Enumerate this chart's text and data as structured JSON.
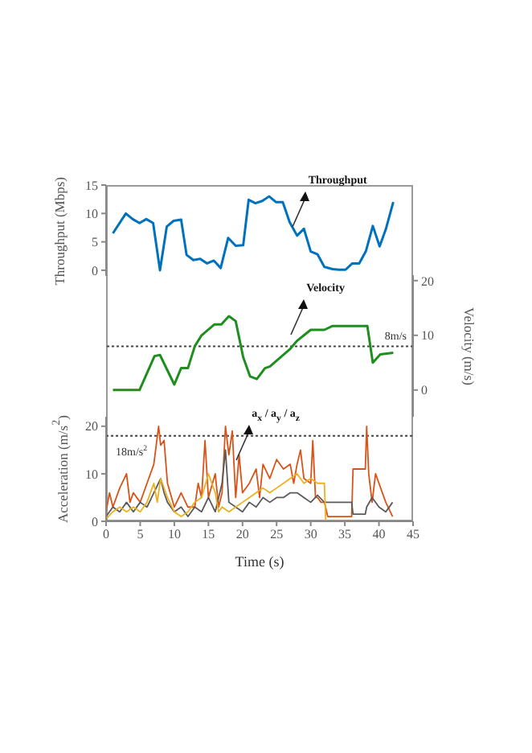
{
  "chart_data": [
    {
      "type": "line",
      "ylabel": "Throughput (Mbps)",
      "xlim": [
        0,
        45
      ],
      "ylim": [
        -1,
        15
      ],
      "yticks": [
        0,
        5,
        10,
        15
      ],
      "tick_labels": "y",
      "series": [
        {
          "color": "#0072bd",
          "x": [
            1,
            2.9,
            3.9,
            4.9,
            5.9,
            6.9,
            7.9,
            8.9,
            9.9,
            11,
            11.8,
            12.8,
            13.8,
            14.8,
            15.8,
            16.8,
            17.9,
            19,
            20.1,
            20.9,
            21.9,
            22.9,
            23.9,
            24.9,
            25.9,
            26.9,
            28,
            29,
            30,
            31,
            32,
            33.2,
            34.1,
            35.1,
            36.1,
            37.1,
            38.1,
            39.1,
            40.1,
            41,
            42.1
          ],
          "values": [
            6.5,
            10,
            9,
            8.3,
            9,
            8.3,
            0,
            7.7,
            8.7,
            8.9,
            2.7,
            1.8,
            2,
            1.2,
            1.7,
            0.4,
            5.7,
            4.3,
            4.4,
            12.4,
            11.8,
            12.2,
            13,
            12,
            12,
            8.5,
            6.1,
            7.3,
            3.3,
            2.8,
            0.6,
            0.2,
            0.1,
            0.1,
            1.2,
            1.2,
            3.4,
            7.8,
            4.2,
            7.2,
            12
          ]
        }
      ],
      "annotations": [
        {
          "text": "Throughput",
          "x": 27.3,
          "y": 7.5
        }
      ]
    },
    {
      "type": "line",
      "y2label": "Velocity (m/s)",
      "xlim": [
        0,
        45
      ],
      "y2lim": [
        -5,
        21
      ],
      "y2ticks": [
        0,
        10,
        20
      ],
      "tick_labels": "y2",
      "series": [
        {
          "color": "#1e8f1e",
          "axis": "y2",
          "x": [
            1,
            4.9,
            7.1,
            7.9,
            10,
            11,
            12,
            13,
            14,
            15.9,
            16.9,
            18,
            19,
            20.1,
            21.1,
            22.1,
            23.3,
            24,
            26.9,
            28,
            29,
            30,
            32,
            33.2,
            38.3,
            39.1,
            40.2,
            42.1
          ],
          "values": [
            0,
            0,
            6.2,
            6.4,
            1,
            4,
            4,
            8,
            10,
            12,
            12,
            13.5,
            12.6,
            6,
            2.5,
            2,
            4,
            4.3,
            7.4,
            9,
            10,
            11,
            11,
            11.7,
            11.7,
            5,
            6.5,
            6.8
          ]
        }
      ],
      "ref_lines": [
        {
          "axis": "y2",
          "value": 8,
          "label": "8m/s",
          "line_style": "dotted",
          "color": "#444444"
        }
      ],
      "annotations": [
        "Velocity"
      ]
    },
    {
      "type": "line",
      "xlabel": "Time (s)",
      "ylabel": "Acceleration (m/s$^{2}$)",
      "xlim": [
        0,
        45
      ],
      "xticks": [
        0,
        5,
        10,
        15,
        20,
        25,
        30,
        35,
        40,
        45
      ],
      "ylim": [
        0,
        22
      ],
      "yticks": [
        0,
        10,
        20
      ],
      "series": [
        {
          "color": "#d95319",
          "x": [
            0,
            0.5,
            1,
            2,
            3,
            3.5,
            4,
            5,
            6,
            7,
            7.7,
            8,
            8.5,
            9,
            10,
            11,
            12,
            13,
            13.5,
            14,
            14.5,
            15,
            16,
            16.5,
            17,
            17.5,
            18,
            18.5,
            19,
            19.5,
            20,
            21,
            22,
            22.5,
            23,
            24,
            25,
            26,
            27,
            27.5,
            28,
            28.5,
            29,
            30,
            30.3,
            30.7,
            31,
            31.5,
            32,
            32.5,
            36,
            36.2,
            38,
            38.2,
            38.5,
            39,
            39.5,
            40,
            41,
            42
          ],
          "values": [
            2,
            6,
            3,
            7,
            10,
            4,
            6,
            4,
            8,
            12,
            20,
            16,
            17,
            8,
            3,
            6,
            3,
            3,
            8,
            5,
            17,
            5,
            10,
            3,
            6,
            20,
            14,
            19,
            5,
            14,
            6,
            8,
            11,
            5,
            12,
            9,
            13,
            11,
            12,
            8,
            12,
            15,
            9,
            8,
            17,
            5,
            5,
            4,
            4,
            1,
            1,
            11,
            11,
            20,
            10,
            4,
            10,
            8,
            4,
            1
          ]
        },
        {
          "color": "#5a5a5a",
          "x": [
            0,
            1,
            2,
            3,
            4,
            5,
            6,
            7,
            8,
            8.5,
            9,
            10,
            11,
            12,
            13,
            14,
            15,
            16,
            17,
            17.5,
            18,
            19,
            20,
            21,
            22,
            23,
            24,
            25,
            26,
            27,
            28,
            29,
            30,
            31,
            32,
            36,
            36.2,
            38,
            38.2,
            39,
            40,
            41,
            42
          ],
          "values": [
            1,
            3,
            2,
            4,
            2,
            4,
            3,
            6,
            9,
            6,
            4,
            2,
            3,
            1,
            3,
            2,
            5,
            2,
            8,
            15,
            4,
            3,
            2,
            4,
            3,
            5,
            4,
            5,
            5,
            6,
            6,
            5,
            4,
            5.5,
            4,
            4,
            1.5,
            1.5,
            3,
            5,
            3,
            2,
            4
          ]
        },
        {
          "color": "#edb120",
          "x": [
            0,
            1,
            2,
            3,
            4,
            5,
            6,
            7,
            7.5,
            8,
            9,
            10,
            11,
            12,
            13,
            14,
            15,
            16,
            16.5,
            17,
            18,
            19,
            20,
            21,
            22,
            23,
            24,
            25,
            26,
            27,
            28,
            29,
            30,
            31,
            32,
            32.2,
            42
          ],
          "values": [
            0.5,
            2,
            3,
            2,
            3,
            2,
            4,
            8,
            4,
            9,
            5,
            2,
            1,
            2,
            4,
            5,
            10,
            6,
            2,
            3,
            2,
            3,
            4,
            5,
            6,
            7,
            6,
            7,
            8,
            9,
            10,
            8,
            9,
            8,
            8,
            0,
            0
          ]
        }
      ],
      "ref_lines": [
        {
          "axis": "y",
          "value": 18,
          "label": "18m/s$^{2}$",
          "line_style": "dotted",
          "color": "#444444"
        }
      ],
      "annotations": [
        {
          "text": "a$_{x}$ / a$_{y}$ / a$_{z}$",
          "x": 19,
          "y": 13
        }
      ]
    }
  ]
}
